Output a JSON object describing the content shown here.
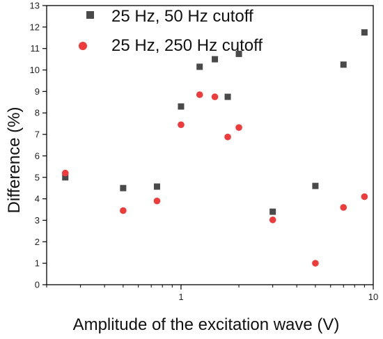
{
  "chart_data": {
    "type": "scatter",
    "xscale": "log",
    "xlim": [
      0.2,
      10
    ],
    "ylim": [
      0,
      13
    ],
    "xlabel": "Amplitude of the excitation wave (V)",
    "ylabel": "Difference (%)",
    "xticks": [
      {
        "value": 1,
        "label": "1"
      },
      {
        "value": 10,
        "label": "10"
      }
    ],
    "yticks": [
      0,
      1,
      2,
      3,
      4,
      5,
      6,
      7,
      8,
      9,
      10,
      11,
      12,
      13
    ],
    "legend_position": "top",
    "grid": false,
    "series": [
      {
        "name": "25 Hz, 50 Hz cutoff",
        "marker": "square",
        "color": "#4a4a4a",
        "x": [
          0.25,
          0.5,
          0.75,
          1,
          1.25,
          1.5,
          1.75,
          2,
          3,
          5,
          7,
          9
        ],
        "y": [
          5.0,
          4.5,
          4.57,
          8.3,
          10.15,
          10.5,
          8.75,
          10.75,
          3.4,
          4.6,
          10.25,
          11.75
        ]
      },
      {
        "name": "25 Hz, 250 Hz cutoff",
        "marker": "circle",
        "color": "#ee3b3b",
        "x": [
          0.25,
          0.5,
          0.75,
          1,
          1.25,
          1.5,
          1.75,
          2,
          3,
          5,
          7,
          9
        ],
        "y": [
          5.2,
          3.45,
          3.9,
          7.45,
          8.85,
          8.75,
          6.88,
          7.32,
          3.02,
          1.0,
          3.6,
          4.1
        ]
      }
    ]
  }
}
